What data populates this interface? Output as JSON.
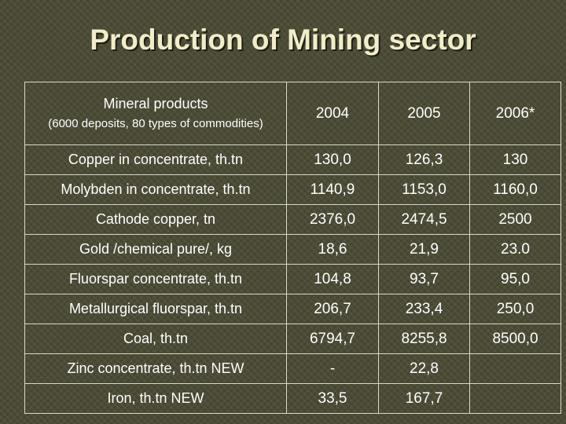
{
  "title": "Production of Mining sector",
  "table": {
    "header": {
      "label_main": "Mineral products",
      "label_sub": "(6000 deposits, 80 types of commodities)",
      "years": [
        "2004",
        "2005",
        "2006*"
      ]
    },
    "rows": [
      {
        "label": "Copper  in concentrate, th.tn",
        "values": [
          "130,0",
          "126,3",
          "130"
        ]
      },
      {
        "label": "Molybden  in concentrate, th.tn",
        "values": [
          "1140,9",
          "1153,0",
          "1160,0"
        ]
      },
      {
        "label": "Cathode copper, tn",
        "values": [
          "2376,0",
          "2474,5",
          "2500"
        ]
      },
      {
        "label": "Gold /chemical pure/, kg",
        "values": [
          "18,6",
          "21,9",
          "23.0"
        ]
      },
      {
        "label": "Fluorspar concentrate, th.tn",
        "values": [
          "104,8",
          "93,7",
          "95,0"
        ]
      },
      {
        "label": "Metallurgical fluorspar, th.tn",
        "values": [
          "206,7",
          "233,4",
          "250,0"
        ]
      },
      {
        "label": "Coal, th.tn",
        "values": [
          "6794,7",
          "8255,8",
          "8500,0"
        ]
      },
      {
        "label": "Zinc concentrate, th.tn  NEW",
        "values": [
          "-",
          "22,8",
          ""
        ]
      },
      {
        "label": "Iron, th.tn   NEW",
        "values": [
          "33,5",
          "167,7",
          ""
        ]
      }
    ]
  },
  "colors": {
    "background": "#4b4b36",
    "title": "#f2ecc8",
    "text": "#ffffff",
    "border": "#d8d8c8"
  }
}
